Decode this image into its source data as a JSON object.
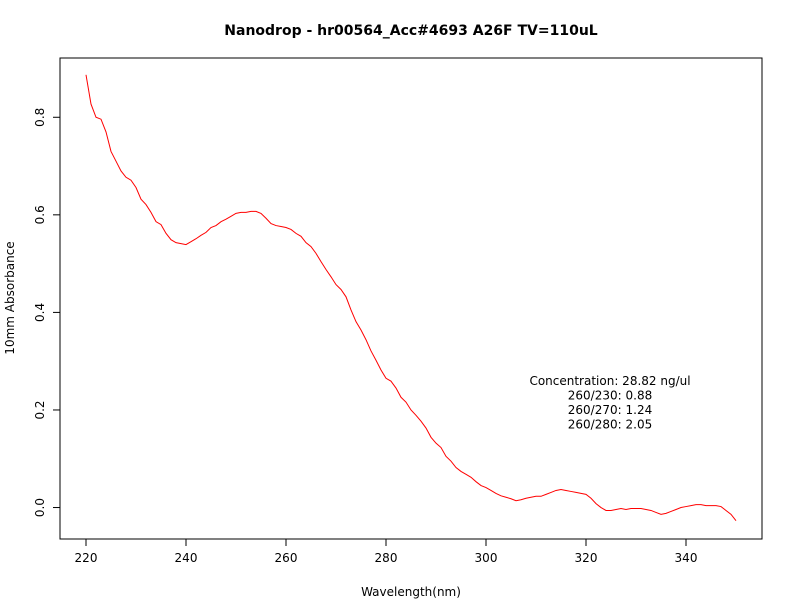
{
  "chart_data": {
    "type": "line",
    "title": "Nanodrop - hr00564_Acc#4693  A26F  TV=110uL",
    "x_label": "Wavelength(nm)",
    "y_label": "10mm Absorbance",
    "color": "#ff0000",
    "x": [
      220,
      221,
      222,
      223,
      224,
      225,
      226,
      227,
      228,
      229,
      230,
      231,
      232,
      233,
      234,
      235,
      236,
      237,
      238,
      239,
      240,
      241,
      242,
      243,
      244,
      245,
      246,
      247,
      248,
      249,
      250,
      251,
      252,
      253,
      254,
      255,
      256,
      257,
      258,
      259,
      260,
      261,
      262,
      263,
      264,
      265,
      266,
      267,
      268,
      269,
      270,
      271,
      272,
      273,
      274,
      275,
      276,
      277,
      278,
      279,
      280,
      281,
      282,
      283,
      284,
      285,
      286,
      287,
      288,
      289,
      290,
      291,
      292,
      293,
      294,
      295,
      296,
      297,
      298,
      299,
      300,
      301,
      302,
      303,
      304,
      305,
      306,
      307,
      308,
      309,
      310,
      311,
      312,
      313,
      314,
      315,
      316,
      317,
      318,
      319,
      320,
      321,
      322,
      323,
      324,
      325,
      326,
      327,
      328,
      329,
      330,
      331,
      332,
      333,
      334,
      335,
      336,
      337,
      338,
      339,
      340,
      341,
      342,
      343,
      344,
      345,
      346,
      347,
      348,
      349,
      350
    ],
    "values": [
      0.887,
      0.827,
      0.8,
      0.796,
      0.77,
      0.73,
      0.71,
      0.69,
      0.677,
      0.671,
      0.656,
      0.632,
      0.621,
      0.605,
      0.586,
      0.58,
      0.562,
      0.549,
      0.543,
      0.541,
      0.539,
      0.545,
      0.551,
      0.558,
      0.564,
      0.574,
      0.578,
      0.586,
      0.591,
      0.597,
      0.603,
      0.605,
      0.605,
      0.607,
      0.607,
      0.603,
      0.593,
      0.582,
      0.578,
      0.576,
      0.574,
      0.57,
      0.562,
      0.556,
      0.543,
      0.535,
      0.521,
      0.504,
      0.488,
      0.473,
      0.457,
      0.447,
      0.432,
      0.405,
      0.381,
      0.364,
      0.344,
      0.321,
      0.302,
      0.282,
      0.265,
      0.259,
      0.245,
      0.226,
      0.216,
      0.2,
      0.189,
      0.177,
      0.163,
      0.144,
      0.132,
      0.123,
      0.105,
      0.095,
      0.082,
      0.074,
      0.068,
      0.062,
      0.053,
      0.045,
      0.041,
      0.035,
      0.029,
      0.024,
      0.021,
      0.018,
      0.014,
      0.016,
      0.019,
      0.021,
      0.023,
      0.023,
      0.027,
      0.031,
      0.035,
      0.037,
      0.035,
      0.033,
      0.031,
      0.029,
      0.027,
      0.019,
      0.008,
      0.0,
      -0.006,
      -0.006,
      -0.004,
      -0.002,
      -0.004,
      -0.002,
      -0.002,
      -0.002,
      -0.004,
      -0.006,
      -0.01,
      -0.014,
      -0.012,
      -0.008,
      -0.004,
      0.0,
      0.002,
      0.004,
      0.006,
      0.006,
      0.004,
      0.004,
      0.004,
      0.002,
      -0.006,
      -0.014,
      -0.027
    ],
    "xlim": [
      214.8,
      355.2
    ],
    "ylim": [
      -0.0645,
      0.9215
    ],
    "xticks": [
      220,
      240,
      260,
      280,
      300,
      320,
      340
    ],
    "yticks": [
      {
        "value": 0,
        "label": "0.0"
      },
      0.2,
      0.4,
      0.6,
      0.8
    ],
    "annotations": [
      "Concentration: 28.82 ng/ul",
      "260/230: 0.88",
      "260/270: 1.24",
      "260/280: 2.05"
    ]
  }
}
